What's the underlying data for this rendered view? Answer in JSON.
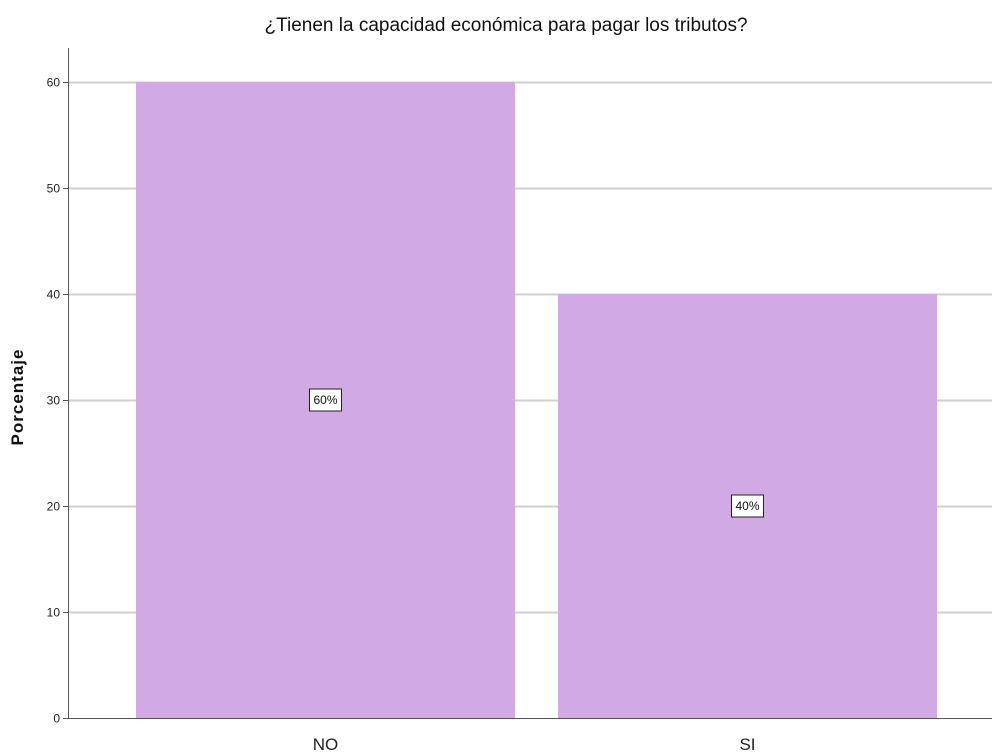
{
  "chart_data": {
    "type": "bar",
    "title": "¿Tienen la capacidad económica para pagar los tributos?",
    "xlabel": "",
    "ylabel": "Porcentaje",
    "categories": [
      "NO",
      "SI"
    ],
    "values": [
      60,
      40
    ],
    "data_labels": [
      "60%",
      "40%"
    ],
    "ylim": [
      0,
      60
    ],
    "yticks": [
      0,
      10,
      20,
      30,
      40,
      50,
      60
    ],
    "grid": true,
    "legend": "none",
    "bar_color": "#D1A9E4",
    "grid_color": "#CFCFCF",
    "axis_color": "#555555"
  }
}
